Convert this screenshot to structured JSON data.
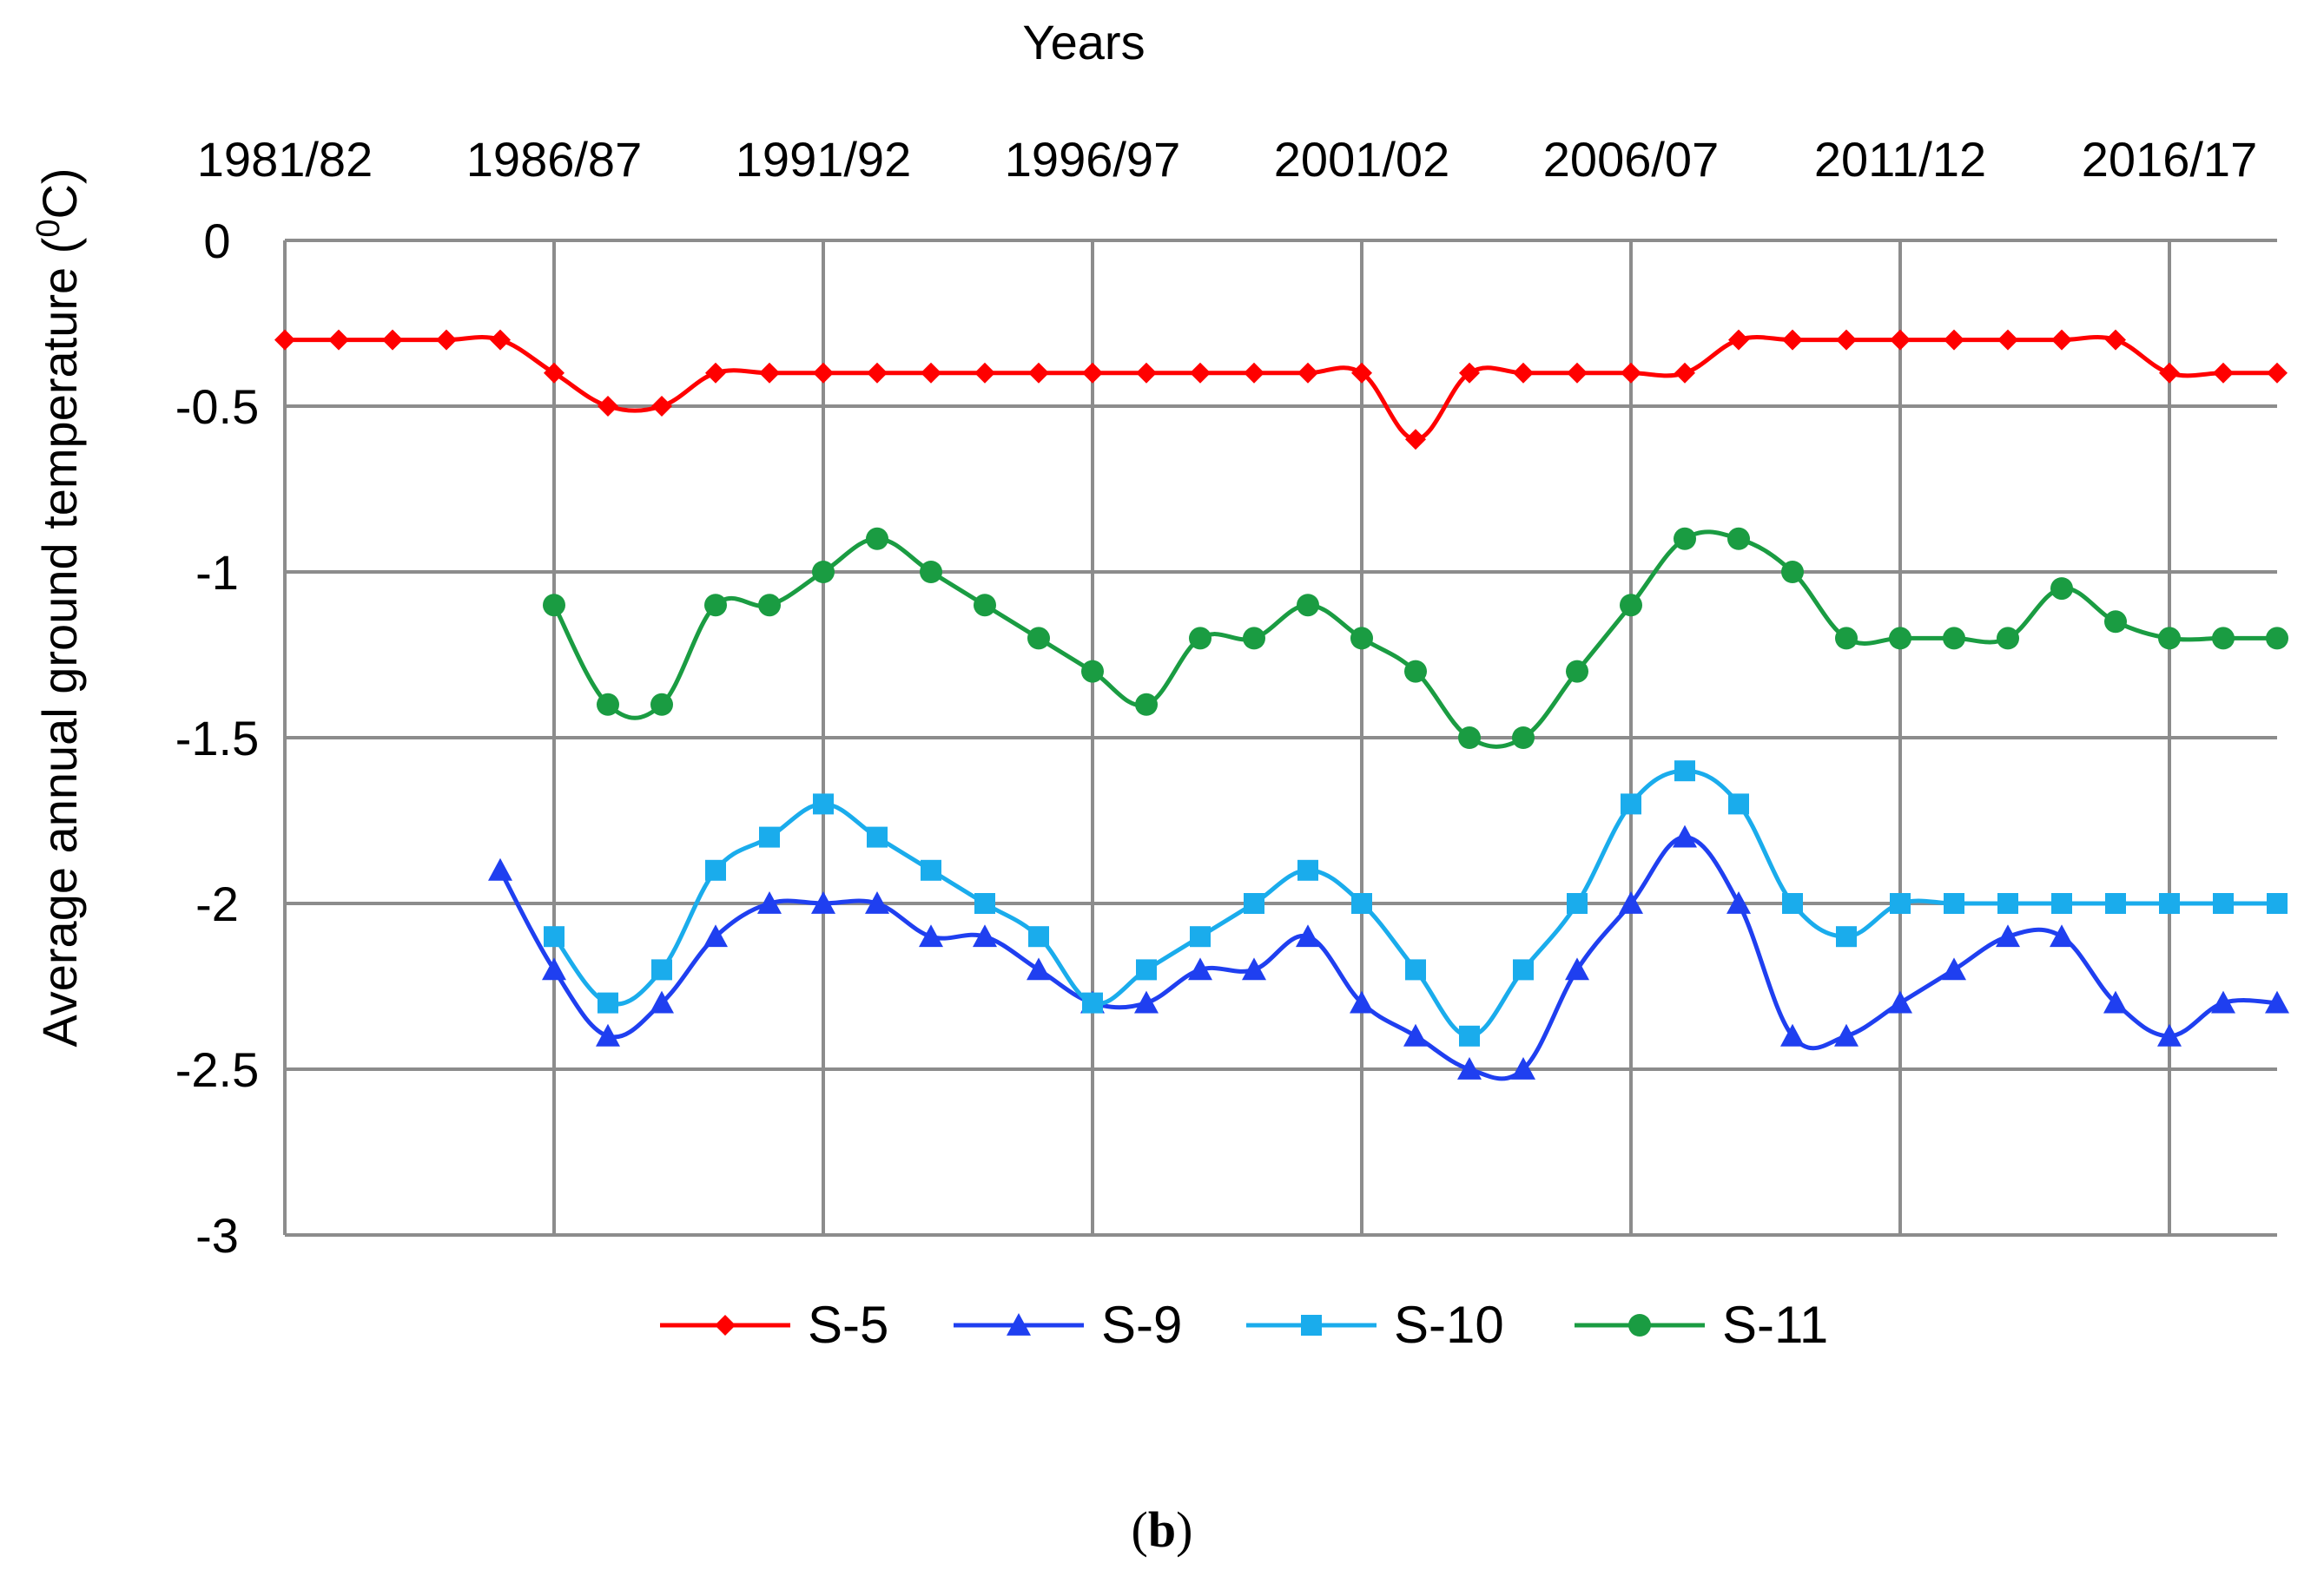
{
  "chart_data": {
    "type": "line",
    "title": "",
    "xlabel": "Years",
    "ylabel": "Average annual ground temperature (",
    "ylabel_sup": "0",
    "ylabel_end": "C)",
    "caption_letter": "b",
    "caption_open": "(",
    "caption_close": ")",
    "ylim": [
      -3,
      0
    ],
    "yticks": [
      0,
      -0.5,
      -1,
      -1.5,
      -2,
      -2.5,
      -3
    ],
    "ytick_labels": [
      "0",
      "-0.5",
      "-1",
      "-1.5",
      "-2",
      "-2.5",
      "-3"
    ],
    "xaxis_position": "top",
    "grid": true,
    "legend_position": "bottom",
    "x_start_season": "1981/82",
    "x_tick_labels": [
      "1981/82",
      "1986/87",
      "1991/92",
      "1996/97",
      "2001/02",
      "2006/07",
      "2011/12",
      "2016/17"
    ],
    "x": [
      "1981/82",
      "1982/83",
      "1983/84",
      "1984/85",
      "1985/86",
      "1986/87",
      "1987/88",
      "1988/89",
      "1989/90",
      "1990/91",
      "1991/92",
      "1992/93",
      "1993/94",
      "1994/95",
      "1995/96",
      "1996/97",
      "1997/98",
      "1998/99",
      "1999/00",
      "2000/01",
      "2001/02",
      "2002/03",
      "2003/04",
      "2004/05",
      "2005/06",
      "2006/07",
      "2007/08",
      "2008/09",
      "2009/10",
      "2010/11",
      "2011/12",
      "2012/13",
      "2013/14",
      "2014/15",
      "2015/16",
      "2016/17",
      "2017/18",
      "2018/19"
    ],
    "series": [
      {
        "name": "S-5",
        "color": "#ff0000",
        "marker": "diamond",
        "values": [
          -0.3,
          -0.3,
          -0.3,
          -0.3,
          -0.3,
          -0.4,
          -0.5,
          -0.5,
          -0.4,
          -0.4,
          -0.4,
          -0.4,
          -0.4,
          -0.4,
          -0.4,
          -0.4,
          -0.4,
          -0.4,
          -0.4,
          -0.4,
          -0.4,
          -0.6,
          -0.4,
          -0.4,
          -0.4,
          -0.4,
          -0.4,
          -0.3,
          -0.3,
          -0.3,
          -0.3,
          -0.3,
          -0.3,
          -0.3,
          -0.3,
          -0.4,
          -0.4,
          -0.4
        ]
      },
      {
        "name": "S-9",
        "color": "#1f3ff0",
        "marker": "triangle",
        "values": [
          null,
          null,
          null,
          null,
          -1.9,
          -2.2,
          -2.4,
          -2.3,
          -2.1,
          -2.0,
          -2.0,
          -2.0,
          -2.1,
          -2.1,
          -2.2,
          -2.3,
          -2.3,
          -2.2,
          -2.2,
          -2.1,
          -2.3,
          -2.4,
          -2.5,
          -2.5,
          -2.2,
          -2.0,
          -1.8,
          -2.0,
          -2.4,
          -2.4,
          -2.3,
          -2.2,
          -2.1,
          -2.1,
          -2.3,
          -2.4,
          -2.3,
          -2.3
        ]
      },
      {
        "name": "S-10",
        "color": "#1aacec",
        "marker": "square",
        "values": [
          null,
          null,
          null,
          null,
          null,
          -2.1,
          -2.3,
          -2.2,
          -1.9,
          -1.8,
          -1.7,
          -1.8,
          -1.9,
          -2.0,
          -2.1,
          -2.3,
          -2.2,
          -2.1,
          -2.0,
          -1.9,
          -2.0,
          -2.2,
          -2.4,
          -2.2,
          -2.0,
          -1.7,
          -1.6,
          -1.7,
          -2.0,
          -2.1,
          -2.0,
          -2.0,
          -2.0,
          -2.0,
          -2.0,
          -2.0,
          -2.0,
          -2.0
        ]
      },
      {
        "name": "S-11",
        "color": "#1a9c42",
        "marker": "circle",
        "values": [
          null,
          null,
          null,
          null,
          null,
          -1.1,
          -1.4,
          -1.4,
          -1.1,
          -1.1,
          -1.0,
          -0.9,
          -1.0,
          -1.1,
          -1.2,
          -1.3,
          -1.4,
          -1.2,
          -1.2,
          -1.1,
          -1.2,
          -1.3,
          -1.5,
          -1.5,
          -1.3,
          -1.1,
          -0.9,
          -0.9,
          -1.0,
          -1.2,
          -1.2,
          -1.2,
          -1.2,
          -1.05,
          -1.15,
          -1.2,
          -1.2,
          -1.2
        ]
      }
    ]
  }
}
